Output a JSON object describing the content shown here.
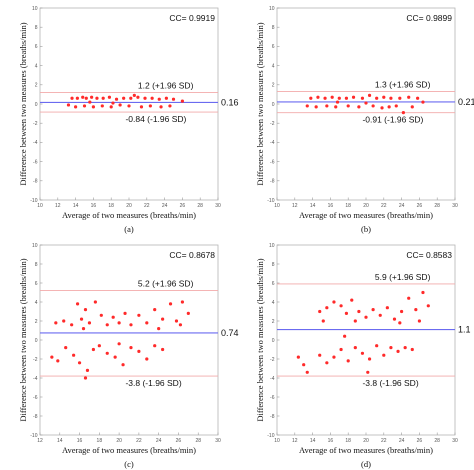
{
  "chart_data": [
    {
      "type": "scatter",
      "caption": "(a)",
      "cc_text": "CC= 0.9919",
      "xlabel": "Average of two measures (breaths/min)",
      "ylabel": "Difference between two measures (breaths/min)",
      "xlim": [
        10,
        30
      ],
      "ylim": [
        -10,
        10
      ],
      "xticks": [
        "10",
        "12",
        "14",
        "16",
        "18",
        "20",
        "22",
        "24",
        "26",
        "28",
        "30"
      ],
      "yticks": [
        "10",
        "8",
        "6",
        "4",
        "2",
        "0",
        "-2",
        "-4",
        "-6",
        "-8",
        "-10"
      ],
      "mean": 0.16,
      "mean_label": "0.16",
      "upper": 1.2,
      "upper_label": "1.2 (+1.96 SD)",
      "lower": -0.84,
      "lower_label": "-0.84 (-1.96 SD)",
      "points": [
        [
          13.6,
          0.6
        ],
        [
          14.2,
          0.6
        ],
        [
          14.8,
          0.7
        ],
        [
          15.2,
          0.6
        ],
        [
          15.8,
          0.7
        ],
        [
          16.4,
          0.6
        ],
        [
          17.1,
          0.6
        ],
        [
          17.8,
          0.7
        ],
        [
          18.6,
          0.5
        ],
        [
          19.4,
          0.6
        ],
        [
          20.2,
          0.6
        ],
        [
          21.0,
          0.7
        ],
        [
          21.8,
          0.6
        ],
        [
          22.6,
          0.6
        ],
        [
          23.4,
          0.5
        ],
        [
          24.2,
          0.6
        ],
        [
          25.0,
          0.5
        ],
        [
          13.2,
          -0.1
        ],
        [
          14.0,
          -0.3
        ],
        [
          15.0,
          -0.2
        ],
        [
          16.0,
          -0.3
        ],
        [
          17.0,
          -0.2
        ],
        [
          18.0,
          -0.3
        ],
        [
          19.0,
          -0.1
        ],
        [
          20.0,
          -0.2
        ],
        [
          21.4,
          -0.3
        ],
        [
          22.4,
          -0.2
        ],
        [
          23.6,
          -0.3
        ],
        [
          24.6,
          -0.2
        ],
        [
          26.0,
          0.3
        ],
        [
          20.6,
          0.9
        ],
        [
          15.6,
          0.2
        ],
        [
          18.2,
          0.1
        ]
      ]
    },
    {
      "type": "scatter",
      "caption": "(b)",
      "cc_text": "CC= 0.9899",
      "xlabel": "Average of two measures (breaths/min)",
      "ylabel": "Difference between two measures (breaths/min)",
      "xlim": [
        10,
        30
      ],
      "ylim": [
        -10,
        10
      ],
      "xticks": [
        "10",
        "12",
        "14",
        "16",
        "18",
        "20",
        "22",
        "24",
        "26",
        "28",
        "30"
      ],
      "yticks": [
        "10",
        "8",
        "6",
        "4",
        "2",
        "0",
        "-2",
        "-4",
        "-6",
        "-8",
        "-10"
      ],
      "mean": 0.21,
      "mean_label": "0.21",
      "upper": 1.3,
      "upper_label": "1.3 (+1.96 SD)",
      "lower": -0.91,
      "lower_label": "-0.91 (-1.96 SD)",
      "points": [
        [
          13.8,
          0.6
        ],
        [
          14.6,
          0.7
        ],
        [
          15.4,
          0.6
        ],
        [
          16.2,
          0.7
        ],
        [
          17.0,
          0.6
        ],
        [
          17.8,
          0.6
        ],
        [
          18.6,
          0.7
        ],
        [
          19.6,
          0.6
        ],
        [
          20.4,
          0.9
        ],
        [
          21.2,
          0.6
        ],
        [
          22.0,
          0.7
        ],
        [
          22.8,
          0.6
        ],
        [
          23.8,
          0.6
        ],
        [
          24.8,
          0.7
        ],
        [
          25.8,
          0.6
        ],
        [
          13.4,
          -0.2
        ],
        [
          14.4,
          -0.3
        ],
        [
          15.6,
          -0.2
        ],
        [
          16.6,
          -0.3
        ],
        [
          18.0,
          -0.2
        ],
        [
          19.2,
          -0.3
        ],
        [
          20.8,
          -0.2
        ],
        [
          21.8,
          -0.4
        ],
        [
          22.6,
          -0.3
        ],
        [
          23.4,
          -0.2
        ],
        [
          24.2,
          -0.9
        ],
        [
          25.2,
          -0.3
        ],
        [
          26.4,
          0.2
        ],
        [
          16.8,
          0.2
        ],
        [
          20.0,
          0.1
        ]
      ]
    },
    {
      "type": "scatter",
      "caption": "(c)",
      "cc_text": "CC= 0.8678",
      "xlabel": "Average of two measures (breaths/min)",
      "ylabel": "Difference between two measures (breaths/min)",
      "xlim": [
        12,
        30
      ],
      "ylim": [
        -10,
        10
      ],
      "xticks": [
        "12",
        "14",
        "16",
        "18",
        "20",
        "22",
        "24",
        "26",
        "28",
        "30"
      ],
      "yticks": [
        "10",
        "8",
        "6",
        "4",
        "2",
        "0",
        "-2",
        "-4",
        "-6",
        "-8",
        "-10"
      ],
      "mean": 0.74,
      "mean_label": "0.74",
      "upper": 5.2,
      "upper_label": "5.2 (+1.96 SD)",
      "lower": -3.8,
      "lower_label": "-3.8 (-1.96 SD)",
      "points": [
        [
          13.6,
          1.8
        ],
        [
          14.4,
          2.0
        ],
        [
          15.2,
          1.6
        ],
        [
          15.8,
          3.8
        ],
        [
          16.2,
          2.2
        ],
        [
          16.6,
          3.2
        ],
        [
          17.0,
          1.8
        ],
        [
          17.6,
          4.0
        ],
        [
          18.2,
          2.6
        ],
        [
          18.8,
          1.6
        ],
        [
          19.4,
          2.4
        ],
        [
          20.0,
          1.8
        ],
        [
          20.6,
          2.8
        ],
        [
          21.2,
          1.6
        ],
        [
          22.0,
          2.6
        ],
        [
          22.8,
          1.8
        ],
        [
          23.6,
          3.2
        ],
        [
          24.4,
          2.2
        ],
        [
          25.2,
          3.8
        ],
        [
          25.8,
          2.0
        ],
        [
          26.4,
          4.0
        ],
        [
          27.0,
          2.8
        ],
        [
          26.2,
          1.6
        ],
        [
          16.4,
          1.2
        ],
        [
          24.0,
          1.2
        ],
        [
          13.2,
          -1.8
        ],
        [
          13.8,
          -2.2
        ],
        [
          14.6,
          -0.8
        ],
        [
          15.4,
          -1.6
        ],
        [
          16.0,
          -2.4
        ],
        [
          16.8,
          -3.2
        ],
        [
          17.4,
          -1.0
        ],
        [
          18.0,
          -0.6
        ],
        [
          18.8,
          -1.4
        ],
        [
          19.6,
          -1.8
        ],
        [
          20.4,
          -2.6
        ],
        [
          21.2,
          -0.8
        ],
        [
          22.0,
          -1.2
        ],
        [
          22.8,
          -2.0
        ],
        [
          23.6,
          -0.6
        ],
        [
          24.4,
          -1.0
        ],
        [
          16.6,
          -4.0
        ],
        [
          20.0,
          -0.4
        ]
      ]
    },
    {
      "type": "scatter",
      "caption": "(d)",
      "cc_text": "CC= 0.8583",
      "xlabel": "Average of two measures (breaths/min)",
      "ylabel": "Difference between two measures (breaths/min)",
      "xlim": [
        10,
        30
      ],
      "ylim": [
        -10,
        10
      ],
      "xticks": [
        "10",
        "12",
        "14",
        "16",
        "18",
        "20",
        "22",
        "24",
        "26",
        "28",
        "30"
      ],
      "yticks": [
        "10",
        "8",
        "6",
        "4",
        "2",
        "0",
        "-2",
        "-4",
        "-6",
        "-8",
        "-10"
      ],
      "mean": 1.1,
      "mean_label": "1.1",
      "upper": 5.9,
      "upper_label": "5.9 (+1.96 SD)",
      "lower": -3.8,
      "lower_label": "-3.8 (-1.96 SD)",
      "points": [
        [
          14.8,
          3.0
        ],
        [
          15.6,
          3.4
        ],
        [
          16.4,
          4.0
        ],
        [
          17.2,
          3.6
        ],
        [
          17.8,
          2.8
        ],
        [
          18.4,
          4.2
        ],
        [
          19.2,
          3.0
        ],
        [
          20.0,
          2.4
        ],
        [
          20.8,
          3.2
        ],
        [
          21.6,
          2.6
        ],
        [
          22.4,
          3.4
        ],
        [
          23.2,
          2.2
        ],
        [
          24.0,
          3.0
        ],
        [
          24.8,
          4.4
        ],
        [
          25.6,
          3.2
        ],
        [
          26.4,
          5.0
        ],
        [
          27.0,
          3.6
        ],
        [
          26.0,
          2.0
        ],
        [
          15.2,
          2.0
        ],
        [
          18.8,
          2.0
        ],
        [
          23.8,
          1.8
        ],
        [
          12.4,
          -1.8
        ],
        [
          13.0,
          -2.6
        ],
        [
          13.4,
          -3.4
        ],
        [
          14.8,
          -1.6
        ],
        [
          15.6,
          -2.4
        ],
        [
          16.4,
          -1.8
        ],
        [
          17.2,
          -1.0
        ],
        [
          18.0,
          -2.2
        ],
        [
          18.8,
          -0.8
        ],
        [
          19.6,
          -1.4
        ],
        [
          20.4,
          -2.0
        ],
        [
          21.2,
          -0.6
        ],
        [
          22.0,
          -1.6
        ],
        [
          22.8,
          -0.8
        ],
        [
          23.6,
          -1.2
        ],
        [
          24.4,
          -0.8
        ],
        [
          25.2,
          -1.0
        ],
        [
          20.2,
          -3.4
        ],
        [
          17.6,
          0.4
        ]
      ]
    }
  ]
}
